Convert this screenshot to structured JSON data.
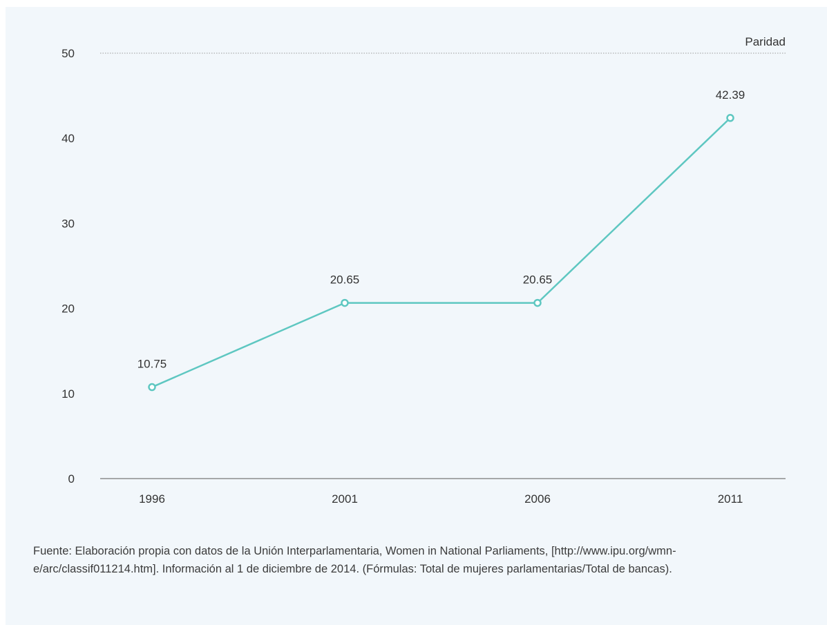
{
  "chart_data": {
    "type": "line",
    "title": "",
    "xlabel": "",
    "ylabel": "",
    "categories": [
      "1996",
      "2001",
      "2006",
      "2011"
    ],
    "series": [
      {
        "values": [
          10.75,
          20.65,
          20.65,
          42.39
        ],
        "color": "#5ec7c1"
      }
    ],
    "data_labels": [
      "10.75",
      "20.65",
      "20.65",
      "42.39"
    ],
    "ylim": [
      0,
      50
    ],
    "yticks": [
      "0",
      "10",
      "20",
      "30",
      "40",
      "50"
    ],
    "reference_line": {
      "value": 50,
      "label": "Paridad",
      "style": "dotted"
    },
    "grid": false,
    "legend": "none"
  },
  "source_note": "Fuente: Elaboración propia con datos de la  Unión Interparlamentaria, Women in National Parliaments, [http://www.ipu.org/wmn-e/arc/classif011214.htm]. Información al 1 de diciembre de 2014. (Fórmulas: Total de mujeres parlamentarias/Total de bancas).",
  "colors": {
    "background": "#f2f7fb",
    "line": "#5ec7c1",
    "axis": "#777777",
    "text": "#333333"
  }
}
